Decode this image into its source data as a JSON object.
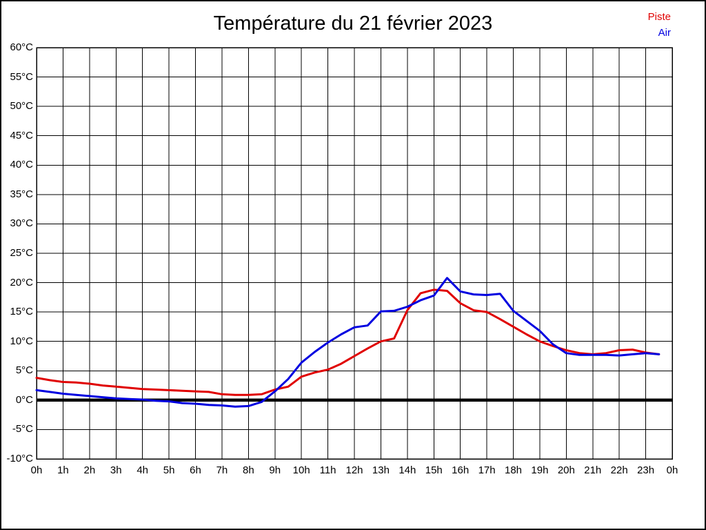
{
  "figure": {
    "title": "Température du 21 février 2023"
  },
  "legend": {
    "items": [
      {
        "label": "Piste",
        "color": "#e00000"
      },
      {
        "label": "Air",
        "color": "#0000e0"
      }
    ]
  },
  "chart_data": {
    "type": "line",
    "title": "Température du 21 février 2023",
    "xlabel": "",
    "ylabel": "",
    "xlim": [
      0,
      24
    ],
    "ylim": [
      -10,
      60
    ],
    "grid": true,
    "zero_line_at": 0,
    "legend_position": "top-right",
    "x": [
      0,
      0.5,
      1,
      1.5,
      2,
      2.5,
      3,
      3.5,
      4,
      4.5,
      5,
      5.5,
      6,
      6.5,
      7,
      7.5,
      8,
      8.5,
      9,
      9.5,
      10,
      10.5,
      11,
      11.5,
      12,
      12.5,
      13,
      13.5,
      14,
      14.5,
      15,
      15.5,
      16,
      16.5,
      17,
      17.5,
      18,
      18.5,
      19,
      19.5,
      20,
      20.5,
      21,
      21.5,
      22,
      22.5,
      23,
      23.5
    ],
    "series": [
      {
        "name": "Piste",
        "color": "#e00000",
        "values": [
          3.8,
          3.4,
          3.1,
          3.0,
          2.8,
          2.5,
          2.3,
          2.1,
          1.9,
          1.8,
          1.7,
          1.6,
          1.5,
          1.4,
          1.0,
          0.9,
          0.9,
          1.0,
          1.8,
          2.3,
          4.0,
          4.7,
          5.2,
          6.2,
          7.5,
          8.8,
          10.0,
          10.5,
          15.3,
          18.2,
          18.8,
          18.6,
          16.5,
          15.3,
          15.0,
          13.8,
          12.5,
          11.2,
          10.0,
          9.2,
          8.5,
          8.0,
          7.8,
          8.0,
          8.5,
          8.6,
          8.1,
          7.8
        ]
      },
      {
        "name": "Air",
        "color": "#0000e0",
        "values": [
          1.7,
          1.4,
          1.1,
          0.9,
          0.7,
          0.5,
          0.3,
          0.2,
          0.1,
          -0.1,
          -0.2,
          -0.5,
          -0.6,
          -0.8,
          -0.9,
          -1.1,
          -1.0,
          -0.3,
          1.5,
          3.6,
          6.4,
          8.2,
          9.8,
          11.2,
          12.4,
          12.7,
          15.1,
          15.2,
          15.9,
          17.0,
          17.8,
          20.8,
          18.5,
          18.0,
          17.9,
          18.1,
          15.2,
          13.5,
          11.8,
          9.5,
          8.0,
          7.7,
          7.7,
          7.7,
          7.6,
          7.8,
          8.0,
          7.8
        ]
      }
    ],
    "x_ticks": [
      {
        "value": 0,
        "label": "0h"
      },
      {
        "value": 1,
        "label": "1h"
      },
      {
        "value": 2,
        "label": "2h"
      },
      {
        "value": 3,
        "label": "3h"
      },
      {
        "value": 4,
        "label": "4h"
      },
      {
        "value": 5,
        "label": "5h"
      },
      {
        "value": 6,
        "label": "6h"
      },
      {
        "value": 7,
        "label": "7h"
      },
      {
        "value": 8,
        "label": "8h"
      },
      {
        "value": 9,
        "label": "9h"
      },
      {
        "value": 10,
        "label": "10h"
      },
      {
        "value": 11,
        "label": "11h"
      },
      {
        "value": 12,
        "label": "12h"
      },
      {
        "value": 13,
        "label": "13h"
      },
      {
        "value": 14,
        "label": "14h"
      },
      {
        "value": 15,
        "label": "15h"
      },
      {
        "value": 16,
        "label": "16h"
      },
      {
        "value": 17,
        "label": "17h"
      },
      {
        "value": 18,
        "label": "18h"
      },
      {
        "value": 19,
        "label": "19h"
      },
      {
        "value": 20,
        "label": "20h"
      },
      {
        "value": 21,
        "label": "21h"
      },
      {
        "value": 22,
        "label": "22h"
      },
      {
        "value": 23,
        "label": "23h"
      },
      {
        "value": 24,
        "label": "0h"
      }
    ],
    "y_ticks": [
      {
        "value": 60,
        "label": "60°C"
      },
      {
        "value": 55,
        "label": "55°C"
      },
      {
        "value": 50,
        "label": "50°C"
      },
      {
        "value": 45,
        "label": "45°C"
      },
      {
        "value": 40,
        "label": "40°C"
      },
      {
        "value": 35,
        "label": "35°C"
      },
      {
        "value": 30,
        "label": "30°C"
      },
      {
        "value": 25,
        "label": "25°C"
      },
      {
        "value": 20,
        "label": "20°C"
      },
      {
        "value": 15,
        "label": "15°C"
      },
      {
        "value": 10,
        "label": "10°C"
      },
      {
        "value": 5,
        "label": "5°C"
      },
      {
        "value": 0,
        "label": "0°C"
      },
      {
        "value": -5,
        "label": "-5°C"
      },
      {
        "value": -10,
        "label": "-10°C"
      }
    ]
  }
}
